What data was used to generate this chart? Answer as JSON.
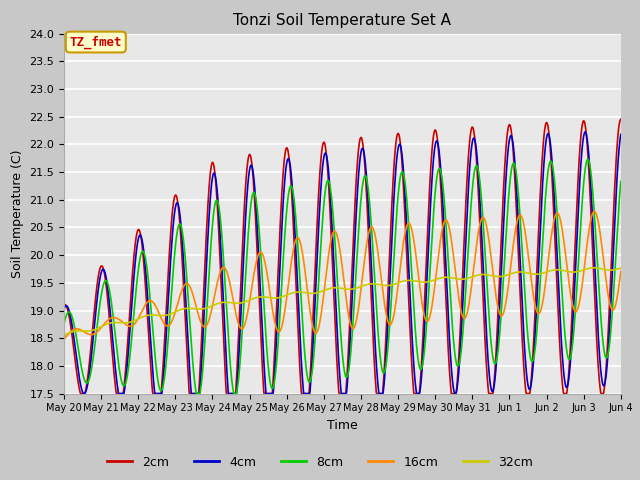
{
  "title": "Tonzi Soil Temperature Set A",
  "xlabel": "Time",
  "ylabel": "Soil Temperature (C)",
  "ylim": [
    17.5,
    24.0
  ],
  "yticks": [
    17.5,
    18.0,
    18.5,
    19.0,
    19.5,
    20.0,
    20.5,
    21.0,
    21.5,
    22.0,
    22.5,
    23.0,
    23.5,
    24.0
  ],
  "line_colors": {
    "2cm": "#cc0000",
    "4cm": "#0000cc",
    "8cm": "#00cc00",
    "16cm": "#ff8800",
    "32cm": "#cccc00"
  },
  "legend_labels": [
    "2cm",
    "4cm",
    "8cm",
    "16cm",
    "32cm"
  ],
  "annotation_text": "TZ_fmet",
  "annotation_bg": "#ffffcc",
  "annotation_border": "#cc9900",
  "annotation_text_color": "#cc0000",
  "fig_bg_color": "#c8c8c8",
  "plot_bg_color": "#e8e8e8",
  "n_days": 15,
  "start_day": 20,
  "points_per_day": 96
}
